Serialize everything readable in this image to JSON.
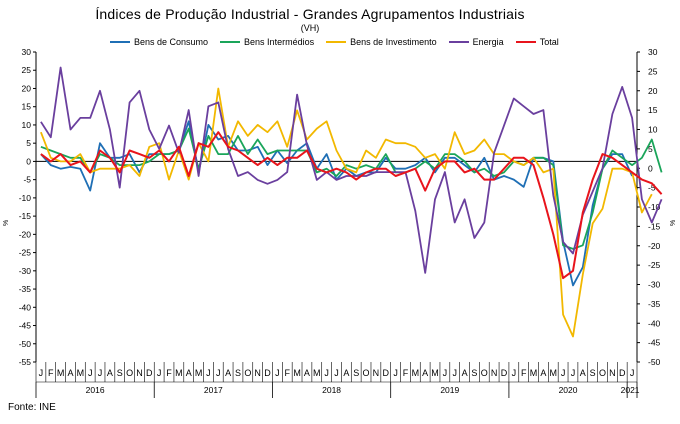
{
  "chart_data": {
    "type": "line",
    "title": "Índices de Produção Industrial - Grandes Agrupamentos Industriais",
    "subtitle": "(VH)",
    "ylabel_left": "%",
    "ylabel_right": "%",
    "source": "Fonte: INE",
    "ylim": [
      -55,
      30
    ],
    "yticks": [
      30,
      25,
      20,
      15,
      10,
      5,
      0,
      -5,
      -10,
      -15,
      -20,
      -25,
      -30,
      -35,
      -40,
      -45,
      -50,
      -55
    ],
    "ylim_right": [
      -50,
      30
    ],
    "yticks_right": [
      30,
      25,
      20,
      15,
      10,
      5,
      0,
      -5,
      -10,
      -15,
      -20,
      -25,
      -30,
      -35,
      -40,
      -45,
      -50
    ],
    "grid": false,
    "legend_position": "top",
    "month_labels": [
      "J",
      "F",
      "M",
      "A",
      "M",
      "J",
      "J",
      "A",
      "S",
      "O",
      "N",
      "D",
      "J",
      "F",
      "M",
      "A",
      "M",
      "J",
      "J",
      "A",
      "S",
      "O",
      "N",
      "D",
      "J",
      "F",
      "M",
      "A",
      "M",
      "J",
      "J",
      "A",
      "S",
      "O",
      "N",
      "D",
      "J",
      "F",
      "M",
      "A",
      "M",
      "J",
      "J",
      "A",
      "S",
      "O",
      "N",
      "D",
      "J",
      "F",
      "M",
      "A",
      "M",
      "J",
      "J",
      "A",
      "S",
      "O",
      "N",
      "D",
      "J"
    ],
    "year_labels": [
      {
        "label": "2016",
        "index": 5.5
      },
      {
        "label": "2017",
        "index": 17.5
      },
      {
        "label": "2018",
        "index": 29.5
      },
      {
        "label": "2019",
        "index": 41.5
      },
      {
        "label": "2020",
        "index": 53.5
      },
      {
        "label": "2021",
        "index": 60
      }
    ],
    "series": [
      {
        "name": "Bens de Consumo",
        "color": "#1f6fb5",
        "axis": "left",
        "values": [
          2,
          -1,
          -2,
          -1.5,
          -2,
          -8,
          5,
          1,
          1,
          2,
          -3,
          2,
          2,
          2,
          3,
          11,
          -3,
          10,
          6,
          7,
          3,
          3,
          4,
          -1,
          3,
          -0.5,
          3,
          5,
          -2,
          2,
          -5,
          -2,
          -4,
          -3,
          -3,
          1,
          -2,
          -2,
          -1,
          1,
          -3,
          1,
          1,
          -1,
          -3,
          1,
          -5,
          -4,
          -5,
          -7,
          1,
          1,
          0,
          -22,
          -34,
          -29,
          -12,
          -2,
          2,
          2,
          -4
        ]
      },
      {
        "name": "Bens Intermédios",
        "color": "#1aa55a",
        "axis": "left",
        "values": [
          4,
          3,
          2,
          1,
          1,
          -3,
          2,
          1,
          -1,
          -1,
          -1,
          0,
          2,
          2,
          3,
          9,
          -2,
          7,
          2,
          2,
          7,
          2,
          6,
          2,
          3,
          3,
          3,
          3,
          -3,
          -2,
          -4,
          -1,
          -2,
          -1,
          -2,
          2,
          -3,
          -3,
          -2,
          0,
          -2,
          2,
          2,
          0,
          -3,
          -2,
          -4,
          -3,
          0,
          -1,
          1,
          1,
          -1,
          -23,
          -24,
          -23,
          -14,
          -2,
          3,
          1,
          -1,
          1,
          6,
          -3
        ]
      },
      {
        "name": "Bens de Investimento",
        "color": "#f2b800",
        "axis": "left",
        "values": [
          8,
          1,
          0,
          0,
          2,
          -3,
          -2,
          -2,
          -2,
          -1,
          -4,
          4,
          5,
          -5,
          3,
          -5,
          5,
          0,
          20,
          4,
          11,
          7,
          10,
          8,
          11,
          4,
          14,
          6,
          9,
          11,
          3,
          -2,
          -3,
          3,
          1,
          6,
          5,
          5,
          4,
          1,
          2,
          -2,
          8,
          2,
          3,
          6,
          2,
          2,
          0,
          -1,
          1,
          -3,
          -2,
          -42,
          -48,
          -31,
          -17,
          -13,
          -2,
          -2,
          -3,
          -14,
          -9
        ]
      },
      {
        "name": "Energia",
        "color": "#6a3f9e",
        "axis": "right",
        "values": [
          12,
          8,
          26,
          10,
          13,
          13,
          20,
          10,
          -5,
          17,
          20,
          10,
          5,
          11,
          4,
          15,
          -2,
          16,
          17,
          5,
          -2,
          -1,
          -3,
          -4,
          -3,
          -1,
          19,
          6,
          -3,
          -1,
          -3,
          -2,
          -2,
          -2,
          -1,
          -1,
          -1,
          -1,
          -11,
          -27,
          -8,
          -1,
          -14,
          -8,
          -18,
          -14,
          4,
          11,
          18,
          16,
          14,
          15,
          -7,
          -19,
          -22,
          -12,
          -6,
          0,
          14,
          21,
          13,
          -8,
          -14,
          -8
        ]
      },
      {
        "name": "Total",
        "color": "#e8141c",
        "axis": "left",
        "values": [
          2,
          0,
          2,
          -1,
          0,
          -3,
          3,
          1,
          -3,
          3,
          2,
          1,
          3,
          0,
          4,
          -4,
          5,
          4,
          8,
          4,
          3,
          1,
          -1,
          1,
          -1,
          1,
          1,
          3,
          -2,
          -3,
          -2,
          -3,
          -5,
          -3,
          -2,
          -2,
          -4,
          -3,
          -2,
          -8,
          -2,
          0,
          0,
          -3,
          -2,
          -5,
          -5,
          -2,
          1,
          1,
          -1,
          -10,
          -20,
          -32,
          -30,
          -14,
          -5,
          2,
          1,
          -1,
          -3,
          -5,
          -6,
          -9
        ]
      }
    ]
  }
}
